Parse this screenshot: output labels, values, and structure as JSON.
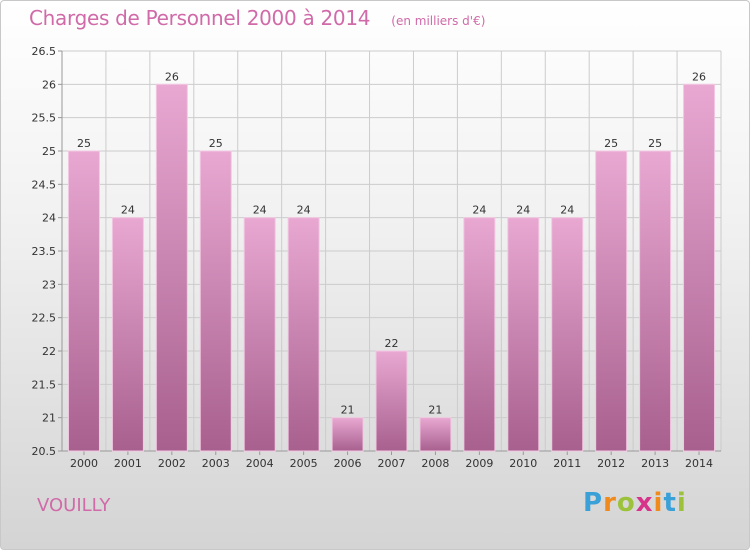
{
  "header": {
    "title": "Charges de Personnel 2000 à 2014",
    "subtitle": "(en milliers d'€)"
  },
  "commune": "VOUILLY",
  "logo": {
    "letters": [
      "P",
      "r",
      "o",
      "x",
      "i",
      "t",
      "i"
    ]
  },
  "colors": {
    "title": "#d06aa8",
    "bar_top": "#e8a8d2",
    "bar_bottom": "#a8608e",
    "grid": "#cccccc"
  },
  "chart_data": {
    "type": "bar",
    "title": "Charges de Personnel 2000 à 2014",
    "subtitle": "(en milliers d'€)",
    "categories": [
      "2000",
      "2001",
      "2002",
      "2003",
      "2004",
      "2005",
      "2006",
      "2007",
      "2008",
      "2009",
      "2010",
      "2011",
      "2012",
      "2013",
      "2014"
    ],
    "values": [
      25,
      24,
      26,
      25,
      24,
      24,
      21,
      22,
      21,
      24,
      24,
      24,
      25,
      25,
      26
    ],
    "labels": [
      "25",
      "24",
      "26",
      "25",
      "24",
      "24",
      "21",
      "22",
      "21",
      "24",
      "24",
      "24",
      "25",
      "25",
      "26"
    ],
    "ylim": [
      20.5,
      26.5
    ],
    "yticks": [
      20.5,
      21,
      21.5,
      22,
      22.5,
      23,
      23.5,
      24,
      24.5,
      25,
      25.5,
      26,
      26.5
    ],
    "ytick_labels": [
      "20.5",
      "21",
      "21.5",
      "22",
      "22.5",
      "23",
      "23.5",
      "24",
      "24.5",
      "25",
      "25.5",
      "26",
      "26.5"
    ],
    "grid": true,
    "legend": "none"
  }
}
